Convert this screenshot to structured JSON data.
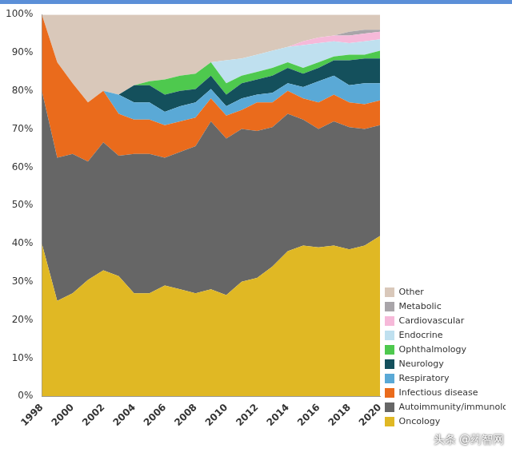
{
  "chart_data": {
    "type": "area",
    "stacked": true,
    "grid": false,
    "legend": "right",
    "categories": [
      "1998",
      null,
      "2000",
      null,
      "2002",
      null,
      "2004",
      null,
      "2006",
      null,
      "2008",
      null,
      "2010",
      null,
      "2012",
      null,
      "2014",
      null,
      "2016",
      null,
      "2018",
      null,
      "2020"
    ],
    "ylim": [
      0,
      100
    ],
    "yticks": [
      {
        "value": 0,
        "label": "0%"
      },
      {
        "value": 10,
        "label": "10%"
      },
      {
        "value": 20,
        "label": "20%"
      },
      {
        "value": 30,
        "label": "30%"
      },
      {
        "value": 40,
        "label": "40%"
      },
      {
        "value": 50,
        "label": "50%"
      },
      {
        "value": 60,
        "label": "60%"
      },
      {
        "value": 70,
        "label": "70%"
      },
      {
        "value": 80,
        "label": "80%"
      },
      {
        "value": 90,
        "label": "90%"
      },
      {
        "value": 100,
        "label": "100%"
      }
    ],
    "annotations": [
      "头条 @药智网"
    ],
    "series": [
      {
        "name": "Oncology",
        "color": "#e0b824",
        "values": [
          40,
          25,
          27,
          30.5,
          33,
          31.5,
          27,
          27,
          29,
          28,
          27,
          28,
          26.5,
          30,
          31,
          34,
          38,
          39.5,
          39,
          39.5,
          38.5,
          39.5,
          42
        ]
      },
      {
        "name": "Autoimmunity/immunology",
        "color": "#666666",
        "values": [
          40,
          37.5,
          36.5,
          31,
          33.5,
          31.5,
          36.5,
          36.5,
          33.5,
          36,
          38.5,
          44,
          41,
          40,
          38.5,
          36.5,
          36,
          33,
          31,
          32.5,
          32,
          30.5,
          29
        ]
      },
      {
        "name": "Infectious disease",
        "color": "#ea6b1c",
        "values": [
          20,
          25,
          18.5,
          15.5,
          13.5,
          11,
          9,
          9,
          8.5,
          8,
          7.5,
          6,
          6,
          5,
          7.5,
          6.5,
          6,
          5.5,
          7,
          7,
          6.5,
          6.5,
          6.5
        ]
      },
      {
        "name": "Respiratory",
        "color": "#5aa9d6",
        "values": [
          0,
          0,
          0,
          0,
          0,
          5,
          4.5,
          4.5,
          3.5,
          4,
          4,
          2.5,
          2.5,
          3,
          2,
          2.5,
          2,
          3,
          5.5,
          5,
          4.5,
          5.5,
          4.5
        ]
      },
      {
        "name": "Neurology",
        "color": "#14505c",
        "values": [
          0,
          0,
          0,
          0,
          0,
          0,
          4.5,
          4.5,
          4.5,
          4,
          3.5,
          3.5,
          3,
          4,
          4,
          4.5,
          4,
          3.5,
          3.5,
          4,
          6.5,
          6.5,
          6.5
        ]
      },
      {
        "name": "Ophthalmology",
        "color": "#4ec94e",
        "values": [
          0,
          0,
          0,
          0,
          0,
          0,
          0,
          1,
          4,
          4,
          4,
          3.5,
          3,
          2,
          2,
          2,
          1.5,
          1.5,
          1.5,
          1,
          1.5,
          1,
          2
        ]
      },
      {
        "name": "Endocrine",
        "color": "#bfe0ef",
        "values": [
          0,
          0,
          0,
          0,
          0,
          0,
          0,
          0,
          0,
          0,
          0,
          0,
          6,
          4.5,
          4.5,
          4.5,
          4,
          6,
          5,
          4,
          3,
          3.5,
          3
        ]
      },
      {
        "name": "Cardiovascular",
        "color": "#f6b9d9",
        "values": [
          0,
          0,
          0,
          0,
          0,
          0,
          0,
          0,
          0,
          0,
          0,
          0,
          0,
          0,
          0,
          0,
          0,
          1,
          1.5,
          1.5,
          2,
          2,
          2
        ]
      },
      {
        "name": "Metabolic",
        "color": "#a9a5a9",
        "values": [
          0,
          0,
          0,
          0,
          0,
          0,
          0,
          0,
          0,
          0,
          0,
          0,
          0,
          0,
          0,
          0,
          0,
          0,
          0,
          0,
          1,
          1,
          0.5
        ]
      },
      {
        "name": "Other",
        "color": "#d9c8ba",
        "values": [
          0,
          12.5,
          18,
          23,
          20,
          21,
          18.5,
          17.5,
          17,
          16,
          15.5,
          12.5,
          12,
          11.5,
          10.5,
          9.5,
          8.5,
          7,
          6,
          5.5,
          4.5,
          4,
          4
        ]
      }
    ]
  }
}
